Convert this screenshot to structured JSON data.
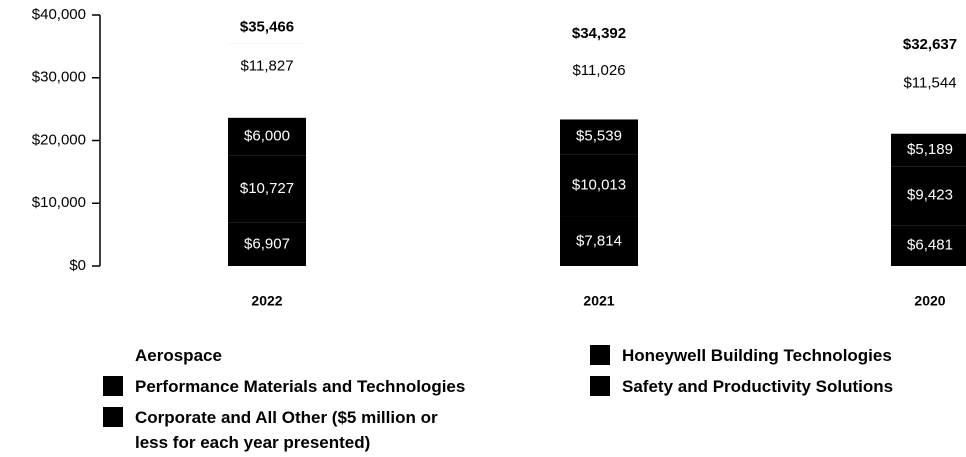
{
  "chart_data": {
    "type": "stacked-bar",
    "categories": [
      "2022",
      "2021",
      "2020"
    ],
    "series": [
      {
        "name": "Safety and Productivity Solutions",
        "color": "#000000",
        "values": [
          6907,
          7814,
          6481
        ],
        "value_labels": [
          "$6,907",
          "$7,814",
          "$6,481"
        ]
      },
      {
        "name": "Performance Materials and Technologies",
        "color": "#000000",
        "values": [
          10727,
          10013,
          9423
        ],
        "value_labels": [
          "$10,727",
          "$10,013",
          "$9,423"
        ]
      },
      {
        "name": "Honeywell Building Technologies",
        "color": "#000000",
        "values": [
          6000,
          5539,
          5189
        ],
        "value_labels": [
          "$6,000",
          "$5,539",
          "$5,189"
        ]
      },
      {
        "name": "Aerospace",
        "color": "#ffffff",
        "values": [
          11827,
          11026,
          11544
        ],
        "value_labels": [
          "$11,827",
          "$11,026",
          "$11,544"
        ]
      },
      {
        "name": "Corporate and All Other ($5 million or less for each year presented)",
        "color": "#000000",
        "values": [
          5,
          0,
          0
        ]
      }
    ],
    "totals": {
      "values": [
        35466,
        34392,
        32637
      ],
      "value_labels": [
        "$35,466",
        "$34,392",
        "$32,637"
      ]
    },
    "ylim": [
      0,
      40000
    ],
    "yticks": [
      {
        "value": 0,
        "label": "$0"
      },
      {
        "value": 10000,
        "label": "$10,000"
      },
      {
        "value": 20000,
        "label": "$20,000"
      },
      {
        "value": 30000,
        "label": "$30,000"
      },
      {
        "value": 40000,
        "label": "$40,000"
      }
    ],
    "legend_order": [
      3,
      1,
      4,
      2,
      0
    ]
  }
}
